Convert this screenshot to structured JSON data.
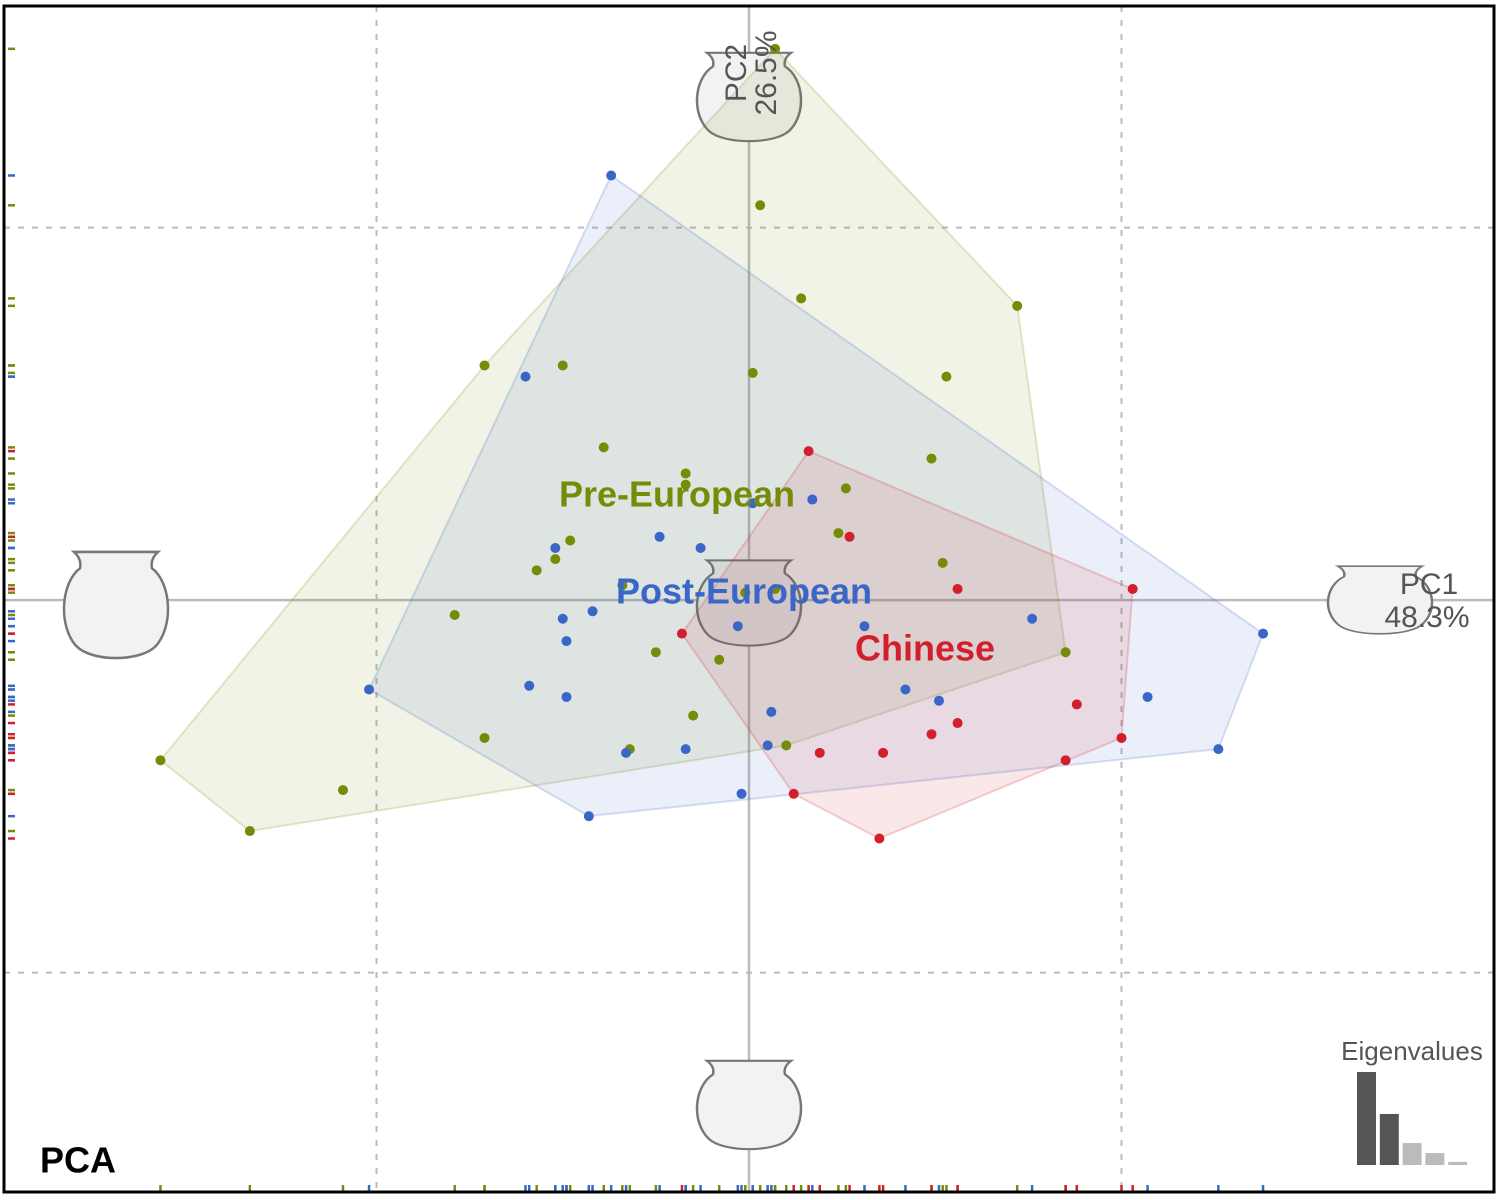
{
  "chart_data": {
    "type": "scatter",
    "title": "PCA",
    "xlabel": [
      "PC1",
      "48.3%"
    ],
    "ylabel": [
      "PC2",
      "26.5%"
    ],
    "xlim": [
      -2,
      2
    ],
    "ylim": [
      -1.589,
      1.595
    ],
    "xgrid": [
      -1,
      0,
      1
    ],
    "ygrid": [
      -1,
      0,
      1
    ],
    "series": [
      {
        "name": "Pre-European",
        "color": "#768c08",
        "x": [
          0.07,
          0.03,
          0.14,
          0.72,
          -0.71,
          -0.5,
          0.01,
          0.53,
          -0.39,
          0.49,
          -0.17,
          -0.17,
          0.26,
          0.24,
          -0.48,
          -0.52,
          -0.57,
          0.52,
          -0.34,
          0.07,
          -0.01,
          -0.79,
          -0.25,
          -0.08,
          0.85,
          -0.15,
          -0.71,
          -0.32,
          0.1,
          -1.58,
          -1.09,
          -1.34
        ],
        "y": [
          1.48,
          1.06,
          0.81,
          0.79,
          0.63,
          0.63,
          0.61,
          0.6,
          0.41,
          0.38,
          0.34,
          0.31,
          0.3,
          0.18,
          0.16,
          0.11,
          0.08,
          0.1,
          0.04,
          0.03,
          0.02,
          -0.04,
          -0.14,
          -0.16,
          -0.14,
          -0.31,
          -0.37,
          -0.4,
          -0.39,
          -0.43,
          -0.51,
          -0.62
        ]
      },
      {
        "name": "Post-European",
        "color": "#3a66c8",
        "x": [
          -0.37,
          -0.6,
          0.17,
          0.01,
          -0.24,
          -0.13,
          -0.52,
          -0.42,
          -0.5,
          -0.49,
          -0.03,
          0.31,
          0.76,
          1.38,
          -1.02,
          -0.59,
          -0.49,
          0.42,
          0.51,
          1.07,
          0.06,
          -0.17,
          -0.33,
          0.05,
          1.26,
          -0.02,
          -0.43
        ],
        "y": [
          1.14,
          0.6,
          0.27,
          0.26,
          0.17,
          0.14,
          0.14,
          -0.03,
          -0.05,
          -0.11,
          -0.07,
          -0.07,
          -0.05,
          -0.09,
          -0.24,
          -0.23,
          -0.26,
          -0.24,
          -0.27,
          -0.26,
          -0.3,
          -0.4,
          -0.41,
          -0.39,
          -0.4,
          -0.52,
          -0.58
        ]
      },
      {
        "name": "Chinese",
        "color": "#d21f2b",
        "x": [
          0.16,
          0.27,
          0.56,
          1.03,
          -0.18,
          0.88,
          0.56,
          0.49,
          1.0,
          0.19,
          0.36,
          0.85,
          0.12,
          0.35
        ],
        "y": [
          0.4,
          0.17,
          0.03,
          0.03,
          -0.09,
          -0.28,
          -0.33,
          -0.36,
          -0.37,
          -0.41,
          -0.41,
          -0.43,
          -0.52,
          -0.64
        ]
      }
    ],
    "eigenvalues": {
      "title": "Eigenvalues",
      "values": [
        48.3,
        26.5,
        11.4,
        6.2,
        1.6
      ],
      "colors": [
        "#555555",
        "#555555",
        "#bbbbbb",
        "#bbbbbb",
        "#bbbbbb"
      ]
    }
  }
}
